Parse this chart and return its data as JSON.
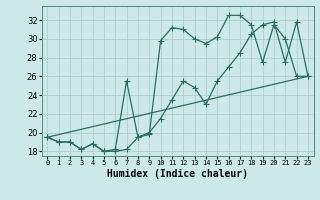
{
  "xlabel": "Humidex (Indice chaleur)",
  "xlim": [
    -0.5,
    23.5
  ],
  "ylim": [
    17.5,
    33.5
  ],
  "yticks": [
    18,
    20,
    22,
    24,
    26,
    28,
    30,
    32
  ],
  "xticks": [
    0,
    1,
    2,
    3,
    4,
    5,
    6,
    7,
    8,
    9,
    10,
    11,
    12,
    13,
    14,
    15,
    16,
    17,
    18,
    19,
    20,
    21,
    22,
    23
  ],
  "bg_color": "#cde8ea",
  "grid_color": "#b8d8da",
  "line_color": "#2a6e65",
  "line1_x": [
    0,
    1,
    2,
    3,
    4,
    5,
    6,
    7,
    8,
    9,
    10,
    11,
    12,
    13,
    14,
    15,
    16,
    17,
    18,
    19,
    20,
    21,
    22,
    23
  ],
  "line1_y": [
    19.5,
    19.0,
    19.0,
    18.2,
    18.8,
    18.0,
    18.0,
    18.2,
    19.5,
    20.0,
    21.5,
    23.5,
    25.5,
    24.8,
    23.0,
    25.5,
    27.0,
    28.5,
    30.5,
    31.5,
    31.8,
    27.5,
    31.8,
    26.0
  ],
  "line2_x": [
    0,
    1,
    2,
    3,
    4,
    5,
    6,
    7,
    8,
    9,
    10,
    11,
    12,
    13,
    14,
    15,
    16,
    17,
    18,
    19,
    20,
    21,
    22,
    23
  ],
  "line2_y": [
    19.5,
    19.0,
    19.0,
    18.2,
    18.8,
    18.0,
    18.2,
    25.5,
    19.5,
    19.8,
    29.8,
    31.2,
    31.0,
    30.0,
    29.5,
    30.2,
    32.5,
    32.5,
    31.5,
    27.5,
    31.5,
    30.0,
    26.0,
    26.0
  ],
  "line3_x": [
    0,
    23
  ],
  "line3_y": [
    19.5,
    26.0
  ]
}
